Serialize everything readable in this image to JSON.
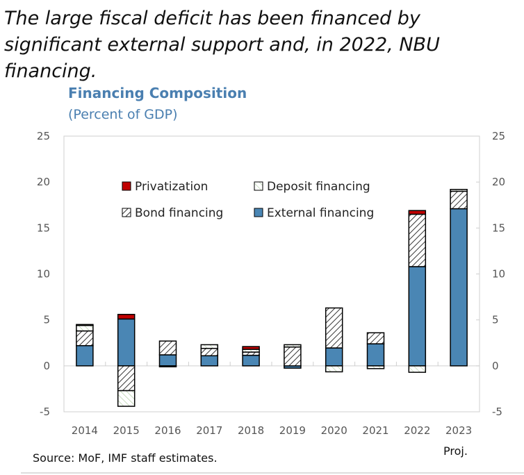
{
  "headline": "The large fiscal deficit has been financed by significant external support and, in 2022, NBU financing.",
  "source": "Source: MoF, IMF staff estimates.",
  "proj_label": "Proj.",
  "colors": {
    "external": "#4a86b4",
    "privatization": "#c00000",
    "title": "#4a7fb0"
  },
  "chart_data": {
    "type": "bar",
    "stacked": true,
    "title": "Financing Composition",
    "subtitle": "(Percent of GDP)",
    "categories": [
      "2014",
      "2015",
      "2016",
      "2017",
      "2018",
      "2019",
      "2020",
      "2021",
      "2022",
      "2023"
    ],
    "ylim": [
      -5,
      25
    ],
    "yticks": [
      -5,
      0,
      5,
      10,
      15,
      20,
      25
    ],
    "legend_position": "top-left inside",
    "series": [
      {
        "name": "External financing",
        "values": [
          2.2,
          5.1,
          1.2,
          1.1,
          1.15,
          -0.25,
          1.95,
          2.4,
          10.8,
          17.1
        ]
      },
      {
        "name": "Bond financing",
        "values": [
          1.6,
          -2.7,
          1.5,
          0.8,
          0.35,
          2.05,
          4.35,
          1.2,
          5.7,
          1.9
        ]
      },
      {
        "name": "Deposit financing",
        "values": [
          0.6,
          -1.7,
          -0.1,
          0.4,
          0.3,
          0.25,
          -0.65,
          -0.3,
          -0.7,
          0.2
        ]
      },
      {
        "name": "Privatization",
        "values": [
          0.1,
          0.5,
          0,
          0,
          0.3,
          0,
          0,
          0,
          0.4,
          0
        ]
      }
    ]
  }
}
